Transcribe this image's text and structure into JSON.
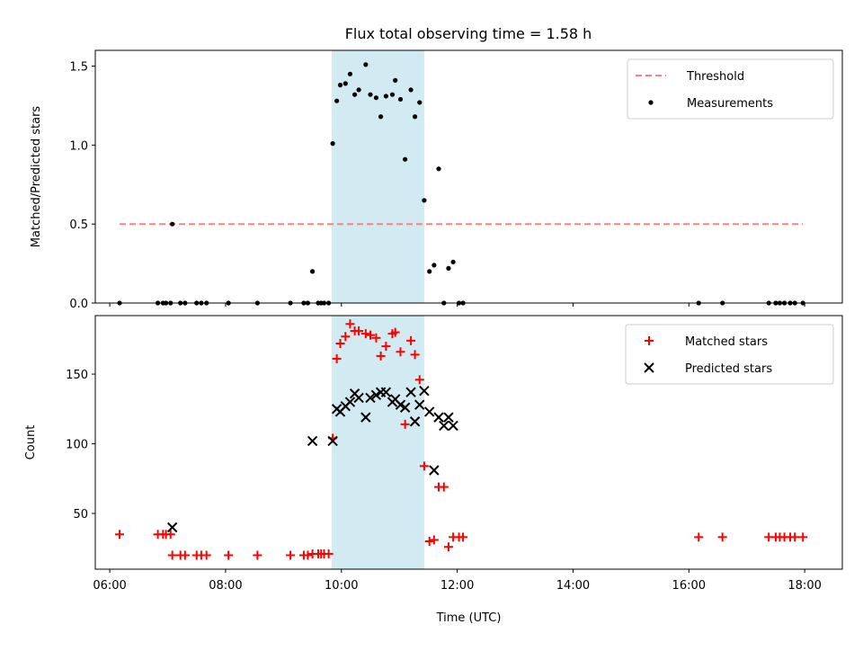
{
  "title": "Flux total observing time = 1.58 h",
  "colors": {
    "band": "#add8e6",
    "threshold": "#ff7f7f",
    "measurement": "#000000",
    "matched": "#ff0000",
    "predicted": "#000000"
  },
  "chart_data": [
    {
      "type": "scatter",
      "ylabel": "Matched/Predicted stars",
      "xlim": [
        5.75,
        18.65
      ],
      "ylim": [
        0,
        1.6
      ],
      "yticks": [
        0.0,
        0.5,
        1.0,
        1.5
      ],
      "ytick_labels": [
        "0.0",
        "0.5",
        "1.0",
        "1.5"
      ],
      "shaded_span": [
        9.83,
        11.43
      ],
      "threshold": {
        "name": "Threshold",
        "value": 0.5,
        "x_range": [
          6.17,
          17.97
        ]
      },
      "legend": {
        "placement": "top-right",
        "entries": [
          "Threshold",
          "Measurements"
        ]
      },
      "series": [
        {
          "name": "Measurements",
          "marker": "dot",
          "x": [
            6.17,
            6.83,
            6.92,
            6.97,
            7.05,
            7.08,
            7.22,
            7.3,
            7.5,
            7.58,
            7.67,
            8.05,
            8.55,
            9.12,
            9.35,
            9.42,
            9.6,
            9.65,
            9.7,
            9.78,
            9.5,
            9.85,
            9.92,
            9.98,
            10.07,
            10.15,
            10.23,
            10.3,
            10.42,
            10.5,
            10.6,
            10.68,
            10.77,
            10.88,
            10.93,
            11.02,
            11.1,
            11.2,
            11.27,
            11.35,
            11.43,
            11.52,
            11.6,
            11.68,
            11.77,
            11.85,
            11.93,
            12.03,
            12.1,
            16.17,
            16.58,
            17.38,
            17.5,
            17.57,
            17.65,
            17.75,
            17.83,
            17.97
          ],
          "y": [
            0.0,
            0.0,
            0.0,
            0.0,
            0.0,
            0.5,
            0.0,
            0.0,
            0.0,
            0.0,
            0.0,
            0.0,
            0.0,
            0.0,
            0.0,
            0.0,
            0.0,
            0.0,
            0.0,
            0.0,
            0.2,
            1.01,
            1.28,
            1.38,
            1.39,
            1.45,
            1.32,
            1.35,
            1.51,
            1.32,
            1.3,
            1.18,
            1.31,
            1.32,
            1.41,
            1.29,
            0.91,
            1.35,
            1.18,
            1.27,
            0.65,
            0.2,
            0.24,
            0.85,
            0.0,
            0.22,
            0.26,
            0.0,
            0.0,
            0.0,
            0.0,
            0.0,
            0.0,
            0.0,
            0.0,
            0.0,
            0.0,
            0.0
          ]
        }
      ]
    },
    {
      "type": "scatter",
      "xlabel": "Time (UTC)",
      "ylabel": "Count",
      "xlim": [
        5.75,
        18.65
      ],
      "ylim": [
        10,
        192
      ],
      "xticks": [
        6,
        8,
        10,
        12,
        14,
        16,
        18
      ],
      "xtick_labels": [
        "06:00",
        "08:00",
        "10:00",
        "12:00",
        "14:00",
        "16:00",
        "18:00"
      ],
      "yticks": [
        50,
        100,
        150
      ],
      "ytick_labels": [
        "50",
        "100",
        "150"
      ],
      "shaded_span": [
        9.83,
        11.43
      ],
      "legend": {
        "placement": "top-right",
        "entries": [
          "Matched stars",
          "Predicted stars"
        ]
      },
      "series": [
        {
          "name": "Matched stars",
          "marker": "plus",
          "x": [
            6.17,
            6.83,
            6.92,
            6.97,
            7.05,
            7.08,
            7.22,
            7.3,
            7.5,
            7.58,
            7.67,
            8.05,
            8.55,
            9.12,
            9.35,
            9.42,
            9.5,
            9.6,
            9.65,
            9.7,
            9.78,
            9.85,
            9.92,
            9.98,
            10.07,
            10.15,
            10.23,
            10.3,
            10.42,
            10.5,
            10.6,
            10.68,
            10.77,
            10.88,
            10.93,
            11.02,
            11.1,
            11.2,
            11.27,
            11.35,
            11.43,
            11.52,
            11.6,
            11.68,
            11.77,
            11.85,
            11.93,
            12.03,
            12.1,
            16.17,
            16.58,
            17.38,
            17.5,
            17.57,
            17.65,
            17.75,
            17.83,
            17.97
          ],
          "y": [
            35,
            35,
            35,
            35,
            35,
            20,
            20,
            20,
            20,
            20,
            20,
            20,
            20,
            20,
            20,
            20,
            21,
            21,
            21,
            21,
            21,
            104,
            161,
            172,
            177,
            186,
            181,
            181,
            179,
            178,
            176,
            163,
            170,
            179,
            180,
            166,
            114,
            174,
            164,
            146,
            84,
            30,
            31,
            69,
            69,
            26,
            33,
            33,
            33,
            33,
            33,
            33,
            33,
            33,
            33,
            33,
            33,
            33
          ]
        },
        {
          "name": "Predicted stars",
          "marker": "x",
          "x": [
            7.08,
            9.5,
            9.85,
            9.92,
            9.98,
            10.07,
            10.15,
            10.23,
            10.3,
            10.42,
            10.5,
            10.6,
            10.68,
            10.77,
            10.88,
            10.93,
            11.02,
            11.1,
            11.2,
            11.27,
            11.35,
            11.43,
            11.52,
            11.6,
            11.68,
            11.77,
            11.85,
            11.93
          ],
          "y": [
            40,
            102,
            102,
            125,
            123,
            127,
            130,
            136,
            133,
            119,
            133,
            135,
            137,
            137,
            130,
            132,
            128,
            126,
            137,
            116,
            128,
            138,
            123,
            81,
            119,
            113,
            119,
            113
          ]
        }
      ]
    }
  ]
}
